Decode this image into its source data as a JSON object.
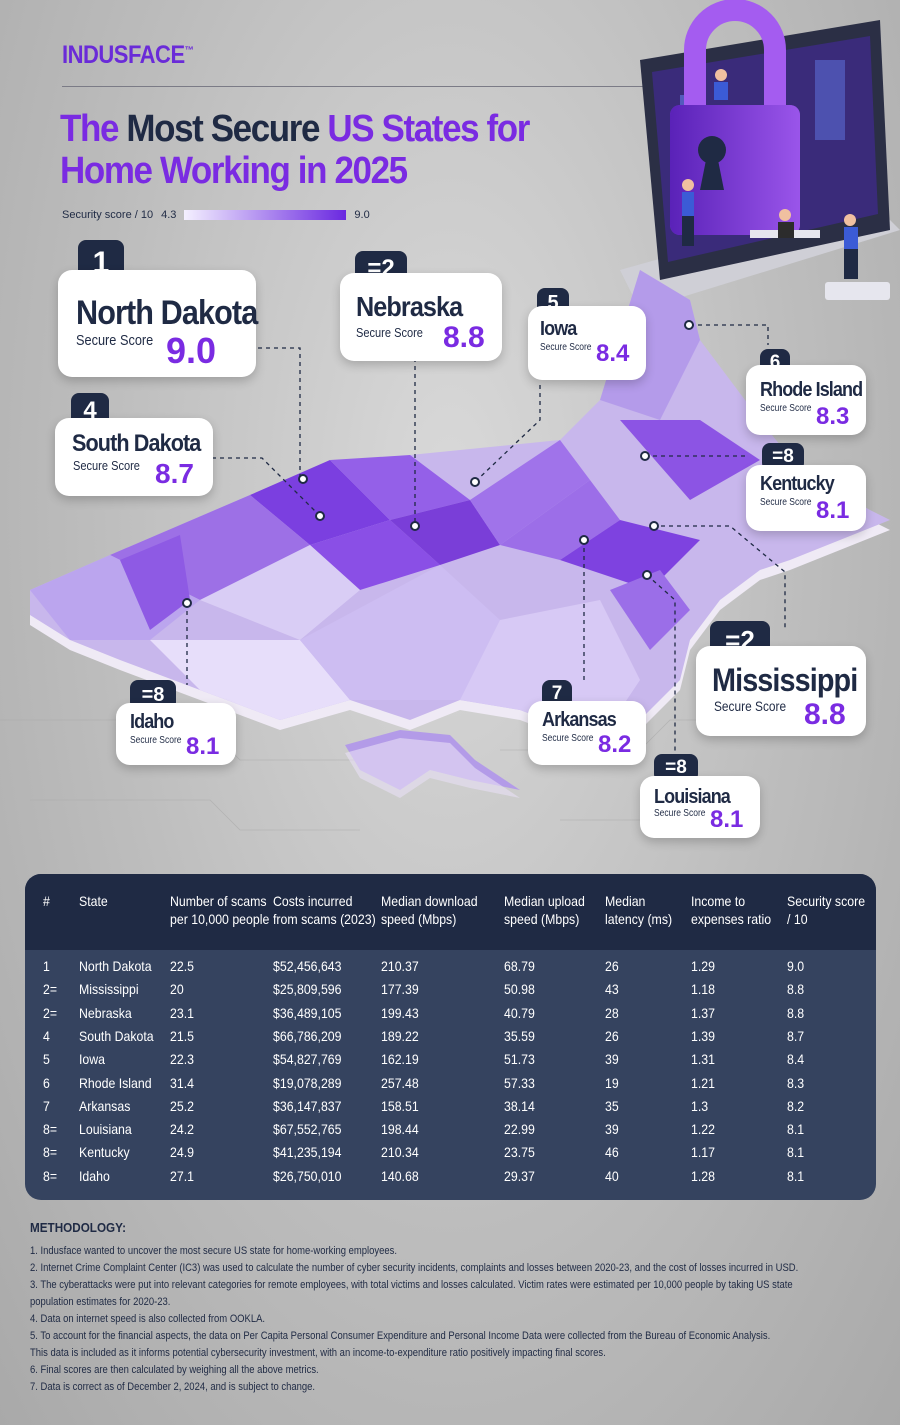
{
  "brand": "INDUSFACE",
  "brand_tm": "™",
  "title": {
    "part1": "The ",
    "part2": "Most Secure ",
    "part3": "US States for",
    "line2": "Home Working in 2025"
  },
  "scale": {
    "label": "Security score / 10",
    "min": "4.3",
    "max": "9.0",
    "color_low": "#f4f0ff",
    "color_high": "#6a28e0"
  },
  "callouts": [
    {
      "rank": "1",
      "state": "North Dakota",
      "label": "Secure Score",
      "score": "9.0"
    },
    {
      "rank": "=2",
      "state": "Nebraska",
      "label": "Secure Score",
      "score": "8.8"
    },
    {
      "rank": "5",
      "state": "Iowa",
      "label": "Secure Score",
      "score": "8.4"
    },
    {
      "rank": "6",
      "state": "Rhode Island",
      "label": "Secure Score",
      "score": "8.3"
    },
    {
      "rank": "4",
      "state": "South Dakota",
      "label": "Secure Score",
      "score": "8.7"
    },
    {
      "rank": "=8",
      "state": "Kentucky",
      "label": "Secure Score",
      "score": "8.1"
    },
    {
      "rank": "=2",
      "state": "Mississippi",
      "label": "Secure Score",
      "score": "8.8"
    },
    {
      "rank": "=8",
      "state": "Idaho",
      "label": "Secure Score",
      "score": "8.1"
    },
    {
      "rank": "7",
      "state": "Arkansas",
      "label": "Secure Score",
      "score": "8.2"
    },
    {
      "rank": "=8",
      "state": "Louisiana",
      "label": "Secure Score",
      "score": "8.1"
    }
  ],
  "table": {
    "headers": [
      [
        "#",
        ""
      ],
      [
        "State",
        ""
      ],
      [
        "Number of scams",
        "per 10,000 people"
      ],
      [
        "Costs incurred",
        "from scams (2023)"
      ],
      [
        "Median download",
        "speed (Mbps)"
      ],
      [
        "Median upload",
        "speed (Mbps)"
      ],
      [
        "Median",
        "latency (ms)"
      ],
      [
        "Income to",
        "expenses ratio"
      ],
      [
        "Security score",
        "/ 10"
      ]
    ],
    "rows": [
      [
        "1",
        "North Dakota",
        "22.5",
        "$52,456,643",
        "210.37",
        "68.79",
        "26",
        "1.29",
        "9.0"
      ],
      [
        "2=",
        "Mississippi",
        "20",
        "$25,809,596",
        "177.39",
        "50.98",
        "43",
        "1.18",
        "8.8"
      ],
      [
        "2=",
        "Nebraska",
        "23.1",
        "$36,489,105",
        "199.43",
        "40.79",
        "28",
        "1.37",
        "8.8"
      ],
      [
        "4",
        "South Dakota",
        "21.5",
        "$66,786,209",
        "189.22",
        "35.59",
        "26",
        "1.39",
        "8.7"
      ],
      [
        "5",
        "Iowa",
        "22.3",
        "$54,827,769",
        "162.19",
        "51.73",
        "39",
        "1.31",
        "8.4"
      ],
      [
        "6",
        "Rhode Island",
        "31.4",
        "$19,078,289",
        "257.48",
        "57.33",
        "19",
        "1.21",
        "8.3"
      ],
      [
        "7",
        "Arkansas",
        "25.2",
        "$36,147,837",
        "158.51",
        "38.14",
        "35",
        "1.3",
        "8.2"
      ],
      [
        "8=",
        "Louisiana",
        "24.2",
        "$67,552,765",
        "198.44",
        "22.99",
        "39",
        "1.22",
        "8.1"
      ],
      [
        "8=",
        "Kentucky",
        "24.9",
        "$41,235,194",
        "210.34",
        "23.75",
        "46",
        "1.17",
        "8.1"
      ],
      [
        "8=",
        "Idaho",
        "27.1",
        "$26,750,010",
        "140.68",
        "29.37",
        "40",
        "1.28",
        "8.1"
      ]
    ]
  },
  "methodology": {
    "heading": "METHODOLOGY:",
    "lines": [
      "1. Indusface wanted to uncover the most secure US state for home-working employees.",
      "2. Internet Crime Complaint Center (IC3) was used to calculate the number of cyber security incidents, complaints and losses between 2020-23, and the cost of losses incurred in USD.",
      "3. The cyberattacks were put into relevant categories for remote employees, with total victims and losses calculated. Victim rates were estimated per 10,000 people by taking US state",
      "population estimates for 2020-23.",
      "4. Data on internet speed is also collected from OOKLA.",
      "5. To account for the financial aspects, the data on Per Capita Personal Consumer Expenditure and Personal Income Data were collected from the Bureau of Economic Analysis.",
      "This data is included as it informs potential cybersecurity investment, with an income-to-expenditure ratio positively impacting final scores.",
      "6. Final scores are then calculated by weighing all the above metrics.",
      "7. Data is correct as of December 2, 2024, and is subject to change."
    ]
  }
}
